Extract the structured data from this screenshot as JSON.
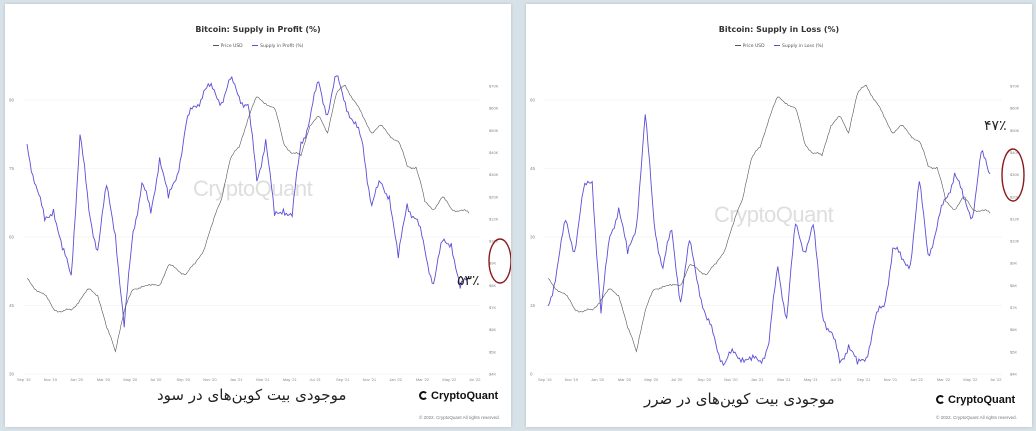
{
  "chart_data": [
    {
      "type": "line",
      "title": "Bitcoin: Supply in Profit (%)",
      "legend": [
        "Price USD",
        "Supply in Profit (%)"
      ],
      "colors": {
        "price": "#555555",
        "metric": "#5b4fd6",
        "highlight": "#8b1a1a"
      },
      "x_ticks": [
        "Sep '19",
        "Nov '19",
        "Jan '20",
        "Mar '20",
        "May '20",
        "Jul '20",
        "Sep '20",
        "Nov '20",
        "Jan '21",
        "Mar '21",
        "May '21",
        "Jul '21",
        "Sep '21",
        "Nov '21",
        "Jan '22",
        "Mar '22",
        "May '22",
        "Jul '22"
      ],
      "y_left_ticks": [
        "90",
        "75",
        "60",
        "45",
        "30"
      ],
      "y_left_lim": [
        30,
        100
      ],
      "y_right_ticks": [
        "$70K",
        "$60K",
        "$50K",
        "$40K",
        "$30K",
        "$20K",
        "$12K",
        "$10K",
        "$9K",
        "$8K",
        "$7K",
        "$6K",
        "$5K",
        "$4K"
      ],
      "series": [
        {
          "name": "Supply in Profit (%)",
          "axis": "left",
          "values": [
            84,
            75,
            65,
            70,
            58,
            54,
            86,
            68,
            60,
            73,
            64,
            40,
            64,
            75,
            67,
            82,
            70,
            78,
            88,
            93,
            97,
            96,
            95,
            98,
            96,
            93,
            75,
            86,
            66,
            70,
            66,
            85,
            90,
            98,
            92,
            99,
            95,
            88,
            84,
            70,
            74,
            73,
            56,
            71,
            66,
            59,
            52,
            60,
            62,
            49,
            53
          ]
        },
        {
          "name": "Price USD",
          "axis": "right",
          "values": [
            10000,
            9200,
            8500,
            7600,
            7300,
            7400,
            8300,
            9000,
            8700,
            6200,
            5000,
            7400,
            9000,
            9500,
            9300,
            9600,
            11400,
            11000,
            10600,
            11500,
            13500,
            17000,
            22000,
            32000,
            36000,
            48000,
            58000,
            56000,
            52000,
            38000,
            34000,
            33000,
            45000,
            48000,
            42000,
            60000,
            66000,
            57000,
            48000,
            42000,
            44000,
            41000,
            38000,
            30000,
            30000,
            21000,
            20000,
            22000,
            20000,
            19500,
            19000
          ]
        }
      ],
      "annotation": "۵۳٪",
      "caption": "موجودی بیت کوین‌های در سود",
      "logo": "CryptoQuant",
      "watermark": "CryptoQuant",
      "copyright": "© 2022. CryptoQuant All rights reserved."
    },
    {
      "type": "line",
      "title": "Bitcoin: Supply in Loss (%)",
      "legend": [
        "Price USD",
        "Supply in Loss (%)"
      ],
      "colors": {
        "price": "#555555",
        "metric": "#5b4fd6",
        "highlight": "#8b1a1a"
      },
      "x_ticks": [
        "Sep '19",
        "Nov '19",
        "Jan '20",
        "Mar '20",
        "May '20",
        "Jul '20",
        "Sep '20",
        "Nov '20",
        "Jan '21",
        "Mar '21",
        "May '21",
        "Jul '21",
        "Sep '21",
        "Nov '21",
        "Jan '22",
        "Mar '22",
        "May '22",
        "Jul '22"
      ],
      "y_left_ticks": [
        "60",
        "45",
        "30",
        "15",
        "0"
      ],
      "y_left_lim": [
        0,
        70
      ],
      "y_right_ticks": [
        "$70K",
        "$60K",
        "$50K",
        "$40K",
        "$30K",
        "$20K",
        "$12K",
        "$10K",
        "$9K",
        "$8K",
        "$7K",
        "$6K",
        "$5K",
        "$4K"
      ],
      "series": [
        {
          "name": "Supply in Loss (%)",
          "axis": "left",
          "values": [
            16,
            25,
            35,
            30,
            42,
            46,
            14,
            32,
            40,
            27,
            36,
            60,
            36,
            25,
            33,
            18,
            30,
            22,
            12,
            7,
            3,
            4,
            5,
            2,
            4,
            7,
            25,
            14,
            34,
            30,
            34,
            15,
            10,
            2,
            8,
            1,
            5,
            12,
            16,
            30,
            26,
            27,
            44,
            29,
            34,
            41,
            48,
            40,
            38,
            51,
            47
          ]
        },
        {
          "name": "Price USD",
          "axis": "right",
          "values": [
            10000,
            9200,
            8500,
            7600,
            7300,
            7400,
            8300,
            9000,
            8700,
            6200,
            5000,
            7400,
            9000,
            9500,
            9300,
            9600,
            11400,
            11000,
            10600,
            11500,
            13500,
            17000,
            22000,
            32000,
            36000,
            48000,
            58000,
            56000,
            52000,
            38000,
            34000,
            33000,
            45000,
            48000,
            42000,
            60000,
            66000,
            57000,
            48000,
            42000,
            44000,
            41000,
            38000,
            30000,
            30000,
            21000,
            20000,
            22000,
            20000,
            19500,
            19000
          ]
        }
      ],
      "annotation": "۴۷٪",
      "caption": "موجودی بیت کوین‌های در ضرر",
      "logo": "CryptoQuant",
      "watermark": "CryptoQuant",
      "copyright": "© 2022. CryptoQuant All rights reserved."
    }
  ]
}
